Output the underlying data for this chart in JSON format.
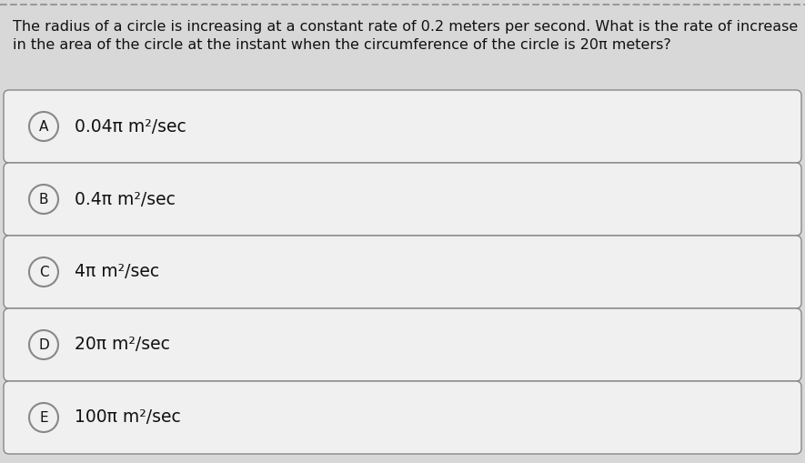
{
  "question_line1": "The radius of a circle is increasing at a constant rate of 0.2 meters per second. What is the rate of increase",
  "question_line2": "in the area of the circle at the instant when the circumference of the circle is 20π meters?",
  "options": [
    {
      "label": "A",
      "text": "0.04π m²/sec"
    },
    {
      "label": "B",
      "text": "0.4π m²/sec"
    },
    {
      "label": "C",
      "text": "4π m²/sec"
    },
    {
      "label": "D",
      "text": "20π m²/sec"
    },
    {
      "label": "E",
      "text": "100π m²/sec"
    }
  ],
  "bg_color": "#d8d8d8",
  "box_facecolor": "#f0f0f0",
  "box_edge_color": "#888888",
  "text_color": "#111111",
  "question_fontsize": 11.5,
  "option_fontsize": 13.5,
  "label_fontsize": 11,
  "dash_color": "#999999"
}
